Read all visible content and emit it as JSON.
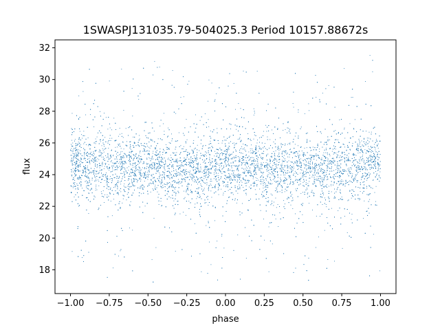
{
  "chart_data": {
    "type": "scatter",
    "title": "1SWASPJ131035.79-504025.3 Period 10157.88672s",
    "xlabel": "phase",
    "ylabel": "flux",
    "xlim": [
      -1.1,
      1.1
    ],
    "ylim": [
      16.5,
      32.5
    ],
    "xticks": [
      -1.0,
      -0.75,
      -0.5,
      -0.25,
      0.0,
      0.25,
      0.5,
      0.75,
      1.0
    ],
    "xtick_labels": [
      "−1.00",
      "−0.75",
      "−0.50",
      "−0.25",
      "0.00",
      "0.25",
      "0.50",
      "0.75",
      "1.00"
    ],
    "yticks": [
      18,
      20,
      22,
      24,
      26,
      28,
      30,
      32
    ],
    "ytick_labels": [
      "18",
      "20",
      "22",
      "24",
      "26",
      "28",
      "30",
      "32"
    ],
    "grid": false,
    "marker_color": "#1f77b4",
    "series": [
      {
        "phase_range": [
          -1.0,
          1.0
        ],
        "flux_center": [
          [
            -1.0,
            24.7
          ],
          [
            -0.75,
            24.5
          ],
          [
            -0.5,
            24.4
          ],
          [
            -0.25,
            24.3
          ],
          [
            0.0,
            24.4
          ],
          [
            0.25,
            24.5
          ],
          [
            0.5,
            24.3
          ],
          [
            0.75,
            24.4
          ],
          [
            1.0,
            24.7
          ]
        ],
        "flux_core_range": [
          22.0,
          27.0
        ],
        "flux_total_range": [
          17.2,
          31.6
        ]
      }
    ]
  }
}
